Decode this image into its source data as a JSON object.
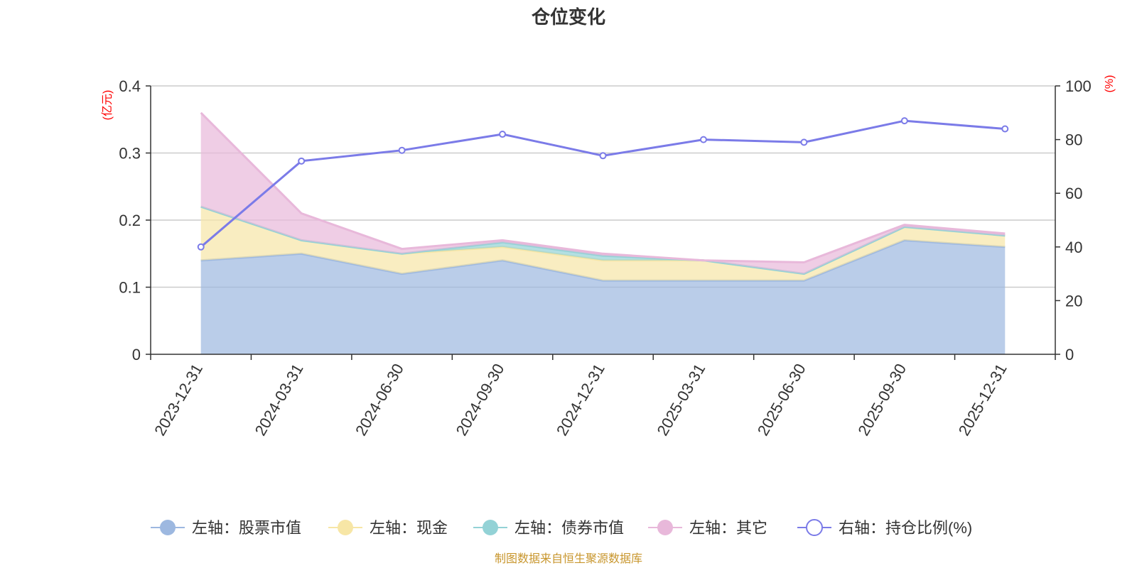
{
  "chart_data": {
    "type": "area",
    "title": "仓位变化",
    "footer": "制图数据来自恒生聚源数据库",
    "categories": [
      "2023-12-31",
      "2024-03-31",
      "2024-06-30",
      "2024-09-30",
      "2024-12-31",
      "2025-03-31",
      "2025-06-30",
      "2025-09-30",
      "2025-12-31"
    ],
    "left_axis": {
      "unit": "(亿元)",
      "ylim": [
        0,
        0.4
      ],
      "ticks": [
        "0",
        "0.1",
        "0.2",
        "0.3",
        "0.4"
      ],
      "tick_values": [
        0,
        0.1,
        0.2,
        0.3,
        0.4
      ]
    },
    "right_axis": {
      "unit": "(%)",
      "ylim": [
        0,
        100
      ],
      "ticks": [
        "0",
        "20",
        "40",
        "60",
        "80",
        "100"
      ],
      "tick_values": [
        0,
        20,
        40,
        60,
        80,
        100
      ]
    },
    "stacked_series": [
      {
        "name": "左轴：股票市值",
        "axis": "left",
        "color": "#9db8e0",
        "values": [
          0.14,
          0.15,
          0.12,
          0.14,
          0.11,
          0.11,
          0.11,
          0.17,
          0.16
        ]
      },
      {
        "name": "左轴：现金",
        "axis": "left",
        "color": "#f7e6a6",
        "values": [
          0.08,
          0.02,
          0.03,
          0.02,
          0.03,
          0.03,
          0.01,
          0.02,
          0.017
        ]
      },
      {
        "name": "左轴：债券市值",
        "axis": "left",
        "color": "#93d2d6",
        "values": [
          0,
          0,
          0,
          0.007,
          0.007,
          0,
          0,
          0,
          0
        ]
      },
      {
        "name": "左轴：其它",
        "axis": "left",
        "color": "#e8b8da",
        "values": [
          0.14,
          0.04,
          0.007,
          0.003,
          0.003,
          0,
          0.017,
          0.003,
          0.003
        ]
      }
    ],
    "line_series": [
      {
        "name": "右轴：持仓比例(%)",
        "axis": "right",
        "color": "#7b7be8",
        "values": [
          40,
          72,
          76,
          82,
          74,
          80,
          79,
          87,
          84
        ]
      }
    ],
    "legend_position": "bottom",
    "grid": true
  }
}
